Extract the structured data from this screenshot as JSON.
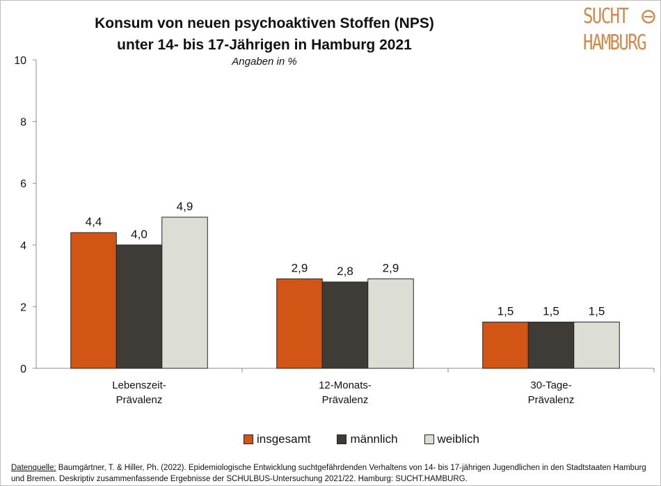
{
  "title_line1": "Konsum von neuen psychoaktiven Stoffen (NPS)",
  "title_line2": "unter 14- bis 17-Jährigen in Hamburg 2021",
  "subtitle": "Angaben in %",
  "logo": {
    "line1": "SUCHT",
    "line2": "HAMBURG",
    "color": "#d4894a"
  },
  "source": {
    "label": "Datenquelle:",
    "text": " Baumgärtner, T. & Hiller, Ph. (2022). Epidemiologische Entwicklung suchtgefährdenden Verhaltens von 14- bis 17-jährigen Jugendlichen in den Stadtstaaten Hamburg und Bremen. Deskriptiv zusammenfassende Ergebnisse der SCHULBUS-Untersuchung 2021/22. Hamburg: SUCHT.HAMBURG."
  },
  "chart_data": {
    "type": "bar",
    "categories": [
      [
        "Lebenszeit-",
        "Prävalenz"
      ],
      [
        "12-Monats-",
        "Prävalenz"
      ],
      [
        "30-Tage-",
        "Prävalenz"
      ]
    ],
    "series": [
      {
        "name": "insgesamt",
        "color": "#d35516",
        "values": [
          4.4,
          2.9,
          1.5
        ],
        "labels": [
          "4,4",
          "2,9",
          "1,5"
        ]
      },
      {
        "name": "männlich",
        "color": "#3f3b37",
        "values": [
          4.0,
          2.8,
          1.5
        ],
        "labels": [
          "4,0",
          "2,8",
          "1,5"
        ]
      },
      {
        "name": "weiblich",
        "color": "#dcddd5",
        "values": [
          4.9,
          2.9,
          1.5
        ],
        "labels": [
          "4,9",
          "2,9",
          "1,5"
        ]
      }
    ],
    "yticks": [
      "0",
      "2",
      "4",
      "6",
      "8",
      "10"
    ],
    "ylim": [
      0,
      10
    ],
    "grid": false,
    "legend_position": "bottom"
  }
}
